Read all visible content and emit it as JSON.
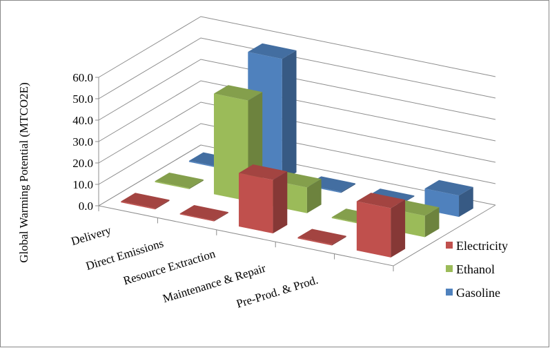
{
  "chart_data": {
    "type": "bar",
    "subtype": "3d-clustered-column",
    "title": "",
    "xlabel": "",
    "ylabel": "Global Warming Potential (MTCO2E)",
    "ylim": [
      0,
      60
    ],
    "yticks": [
      "0.0",
      "10.0",
      "20.0",
      "30.0",
      "40.0",
      "50.0",
      "60.0"
    ],
    "grid": true,
    "legend": "right",
    "categories": [
      "Delivery",
      "Direct Emissions",
      "Resource Extraction",
      "Maintenance & Repair",
      "Pre-Prod. & Prod."
    ],
    "series": [
      {
        "name": "Electricity",
        "color": "#c0504d",
        "values": [
          0.5,
          0.3,
          25,
          0.5,
          23
        ]
      },
      {
        "name": "Ethanol",
        "color": "#9bbb59",
        "values": [
          0.5,
          47,
          12,
          0.5,
          10
        ]
      },
      {
        "name": "Gasoline",
        "color": "#4f81bd",
        "values": [
          0.5,
          57,
          0.5,
          0.3,
          10
        ]
      }
    ]
  }
}
